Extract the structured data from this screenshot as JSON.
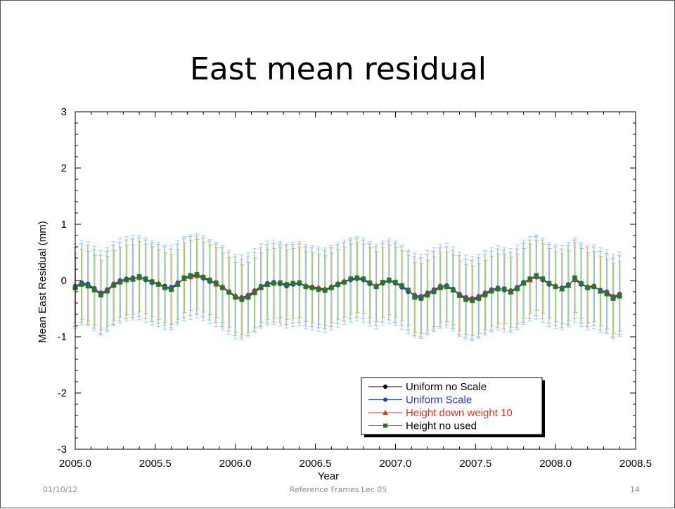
{
  "slide": {
    "title": "East mean residual",
    "footer_date": "01/10/12",
    "footer_center": "Reference Frames Lec 05",
    "page_number": "14"
  },
  "chart_data": {
    "type": "scatter",
    "xlabel": "Year",
    "ylabel": "Mean East Residual (mm)",
    "xlim": [
      2005.0,
      2008.5
    ],
    "ylim": [
      -3,
      3
    ],
    "x_ticks": [
      2005.0,
      2005.5,
      2006.0,
      2006.5,
      2007.0,
      2007.5,
      2008.0,
      2008.5
    ],
    "x_tick_labels": [
      "2005.0",
      "2005.5",
      "2006.0",
      "2006.5",
      "2007.0",
      "2007.5",
      "2008.0",
      "2008.5"
    ],
    "y_ticks": [
      -3,
      -2,
      -1,
      0,
      1,
      2,
      3
    ],
    "y_tick_labels": [
      "-3",
      "-2",
      "-1",
      "0",
      "1",
      "2",
      "3"
    ],
    "grid": false,
    "legend_position": "bottom-right",
    "x": [
      2005.0,
      2005.04,
      2005.08,
      2005.12,
      2005.16,
      2005.2,
      2005.24,
      2005.28,
      2005.32,
      2005.36,
      2005.4,
      2005.44,
      2005.48,
      2005.52,
      2005.56,
      2005.6,
      2005.64,
      2005.68,
      2005.72,
      2005.76,
      2005.8,
      2005.84,
      2005.88,
      2005.92,
      2005.96,
      2006.0,
      2006.04,
      2006.08,
      2006.12,
      2006.16,
      2006.2,
      2006.24,
      2006.28,
      2006.32,
      2006.36,
      2006.4,
      2006.44,
      2006.48,
      2006.52,
      2006.56,
      2006.6,
      2006.64,
      2006.68,
      2006.72,
      2006.76,
      2006.8,
      2006.84,
      2006.88,
      2006.92,
      2006.96,
      2007.0,
      2007.04,
      2007.08,
      2007.12,
      2007.16,
      2007.2,
      2007.24,
      2007.28,
      2007.32,
      2007.36,
      2007.4,
      2007.44,
      2007.48,
      2007.52,
      2007.56,
      2007.6,
      2007.64,
      2007.68,
      2007.72,
      2007.76,
      2007.8,
      2007.84,
      2007.88,
      2007.92,
      2007.96,
      2008.0,
      2008.04,
      2008.08,
      2008.12,
      2008.16,
      2008.2,
      2008.24,
      2008.28,
      2008.32,
      2008.36,
      2008.4
    ],
    "series": [
      {
        "name": "Uniform no Scale",
        "color": "#000000",
        "marker": "circle",
        "values": [
          -0.12,
          -0.05,
          -0.08,
          -0.15,
          -0.25,
          -0.18,
          -0.08,
          -0.02,
          0.02,
          0.04,
          0.06,
          0.02,
          -0.03,
          -0.06,
          -0.1,
          -0.14,
          -0.05,
          0.04,
          0.08,
          0.1,
          0.05,
          0.0,
          -0.05,
          -0.12,
          -0.2,
          -0.28,
          -0.32,
          -0.28,
          -0.2,
          -0.12,
          -0.06,
          -0.04,
          -0.05,
          -0.08,
          -0.06,
          -0.05,
          -0.1,
          -0.12,
          -0.14,
          -0.16,
          -0.12,
          -0.06,
          -0.02,
          0.02,
          0.04,
          0.02,
          -0.05,
          -0.1,
          -0.04,
          0.0,
          -0.04,
          -0.1,
          -0.18,
          -0.28,
          -0.3,
          -0.24,
          -0.18,
          -0.12,
          -0.1,
          -0.16,
          -0.26,
          -0.32,
          -0.34,
          -0.3,
          -0.24,
          -0.18,
          -0.14,
          -0.16,
          -0.2,
          -0.14,
          -0.04,
          0.02,
          0.08,
          0.02,
          -0.06,
          -0.1,
          -0.14,
          -0.08,
          0.02,
          -0.06,
          -0.12,
          -0.1,
          -0.18,
          -0.22,
          -0.3,
          -0.26
        ]
      },
      {
        "name": "Uniform Scale",
        "color": "#1c3bd6",
        "marker": "circle",
        "values": [
          -0.1,
          -0.04,
          -0.06,
          -0.14,
          -0.22,
          -0.16,
          -0.06,
          0.0,
          0.03,
          0.05,
          0.05,
          0.01,
          -0.04,
          -0.07,
          -0.12,
          -0.12,
          -0.04,
          0.03,
          0.06,
          0.08,
          0.04,
          -0.02,
          -0.07,
          -0.13,
          -0.21,
          -0.29,
          -0.3,
          -0.26,
          -0.18,
          -0.1,
          -0.05,
          -0.03,
          -0.06,
          -0.1,
          -0.07,
          -0.06,
          -0.11,
          -0.13,
          -0.15,
          -0.17,
          -0.13,
          -0.08,
          -0.03,
          0.01,
          0.03,
          0.01,
          -0.06,
          -0.11,
          -0.05,
          -0.01,
          -0.05,
          -0.12,
          -0.2,
          -0.26,
          -0.28,
          -0.22,
          -0.16,
          -0.1,
          -0.09,
          -0.15,
          -0.24,
          -0.3,
          -0.32,
          -0.28,
          -0.22,
          -0.16,
          -0.13,
          -0.17,
          -0.18,
          -0.12,
          -0.03,
          0.03,
          0.06,
          0.01,
          -0.07,
          -0.11,
          -0.13,
          -0.07,
          0.01,
          -0.07,
          -0.13,
          -0.11,
          -0.17,
          -0.2,
          -0.28,
          -0.24
        ]
      },
      {
        "name": "Height down weight 10",
        "color": "#e2321f",
        "marker": "triangle",
        "values": [
          -0.11,
          -0.06,
          -0.09,
          -0.16,
          -0.24,
          -0.17,
          -0.07,
          -0.01,
          0.01,
          0.03,
          0.05,
          0.03,
          -0.02,
          -0.05,
          -0.11,
          -0.15,
          -0.06,
          0.03,
          0.07,
          0.09,
          0.06,
          0.01,
          -0.06,
          -0.11,
          -0.19,
          -0.27,
          -0.31,
          -0.27,
          -0.19,
          -0.11,
          -0.07,
          -0.05,
          -0.04,
          -0.07,
          -0.05,
          -0.04,
          -0.09,
          -0.11,
          -0.13,
          -0.15,
          -0.11,
          -0.05,
          -0.01,
          0.03,
          0.05,
          0.03,
          -0.04,
          -0.09,
          -0.03,
          0.01,
          -0.03,
          -0.09,
          -0.17,
          -0.27,
          -0.29,
          -0.23,
          -0.17,
          -0.11,
          -0.11,
          -0.17,
          -0.25,
          -0.31,
          -0.33,
          -0.29,
          -0.23,
          -0.17,
          -0.15,
          -0.15,
          -0.19,
          -0.13,
          -0.05,
          0.01,
          0.07,
          0.03,
          -0.05,
          -0.09,
          -0.15,
          -0.09,
          0.03,
          -0.05,
          -0.11,
          -0.09,
          -0.19,
          -0.21,
          -0.29,
          -0.25
        ]
      },
      {
        "name": "Height no used",
        "color": "#1f7a2e",
        "marker": "square",
        "values": [
          -0.13,
          -0.07,
          -0.1,
          -0.17,
          -0.26,
          -0.19,
          -0.09,
          -0.03,
          0.01,
          0.02,
          0.07,
          0.03,
          -0.02,
          -0.07,
          -0.13,
          -0.16,
          -0.07,
          0.05,
          0.09,
          0.11,
          0.06,
          0.01,
          -0.04,
          -0.13,
          -0.21,
          -0.3,
          -0.34,
          -0.3,
          -0.22,
          -0.13,
          -0.07,
          -0.05,
          -0.04,
          -0.07,
          -0.05,
          -0.04,
          -0.11,
          -0.13,
          -0.16,
          -0.18,
          -0.13,
          -0.07,
          -0.03,
          0.03,
          0.05,
          0.03,
          -0.04,
          -0.11,
          -0.03,
          0.01,
          -0.03,
          -0.09,
          -0.17,
          -0.3,
          -0.32,
          -0.26,
          -0.2,
          -0.13,
          -0.11,
          -0.17,
          -0.27,
          -0.34,
          -0.36,
          -0.32,
          -0.26,
          -0.19,
          -0.15,
          -0.15,
          -0.21,
          -0.15,
          -0.05,
          0.03,
          0.09,
          0.03,
          -0.05,
          -0.11,
          -0.15,
          -0.09,
          0.05,
          -0.05,
          -0.13,
          -0.11,
          -0.19,
          -0.24,
          -0.32,
          -0.28
        ]
      }
    ],
    "error_bar_half_width_mm": [
      {
        "series": "Uniform no Scale",
        "color": "#c79ac9",
        "value": 0.7
      },
      {
        "series": "Uniform Scale",
        "color": "#8fd8ec",
        "value": 0.75
      },
      {
        "series": "Height no used",
        "color": "#9ed15a",
        "value": 0.62
      }
    ]
  }
}
